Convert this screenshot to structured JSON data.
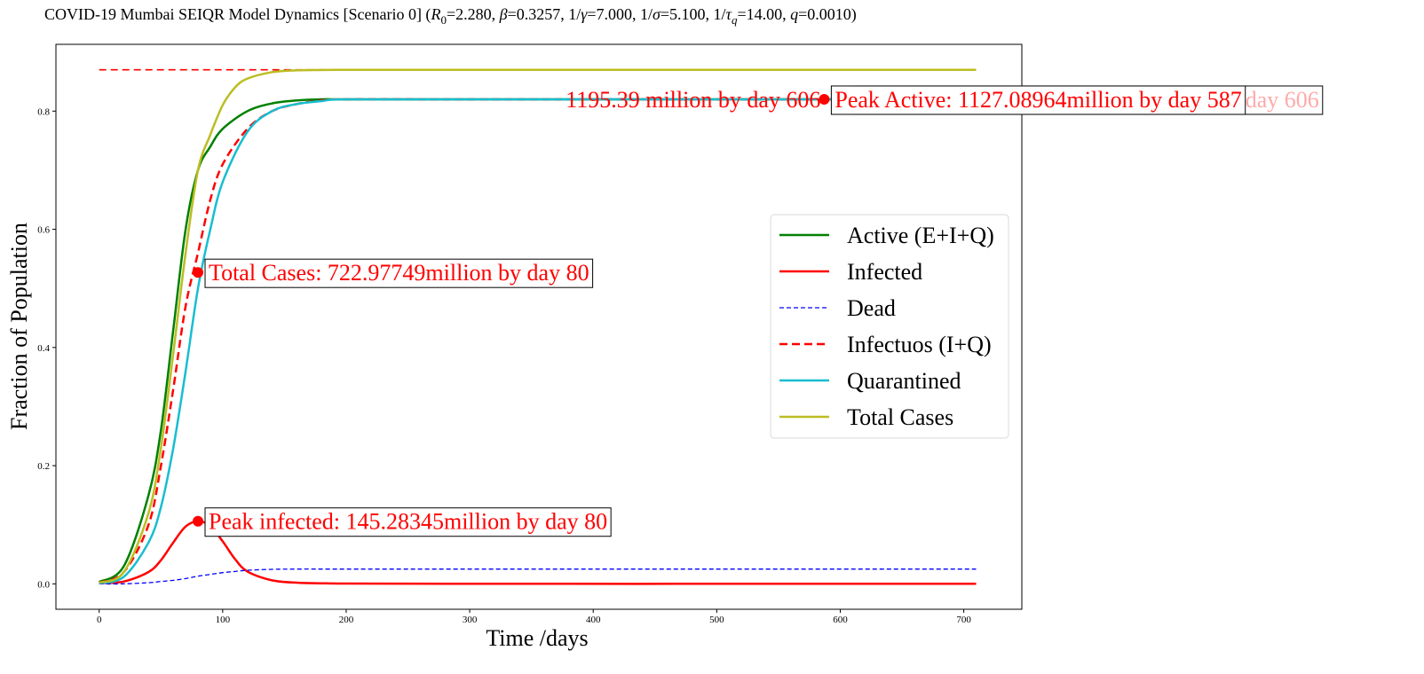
{
  "chart_data": {
    "type": "line",
    "title": {
      "prefix": "COVID-19 Mumbai SEIQR Model Dynamics [Scenario 0] (",
      "r0_symbol": "R",
      "r0_sub": "0",
      "r0_value": "=2.280, ",
      "beta_symbol": "β",
      "beta_value": "=0.3257, 1/",
      "gamma_symbol": "γ",
      "gamma_value": "=7.000, 1/",
      "sigma_symbol": "σ",
      "sigma_value": "=5.100, 1/",
      "tau_symbol": "τ",
      "tau_sub": "q",
      "tau_value": "=14.00, ",
      "q_symbol": "q",
      "q_value": "=0.0010)"
    },
    "xlabel": "Time /days",
    "ylabel": "Fraction of Population",
    "xlim": [
      -35,
      747
    ],
    "ylim": [
      -0.043,
      0.913
    ],
    "xticks": [
      0,
      100,
      200,
      300,
      400,
      500,
      600,
      700
    ],
    "yticks": [
      0.0,
      0.2,
      0.4,
      0.6,
      0.8
    ],
    "ytick_labels": [
      "0.0",
      "0.2",
      "0.4",
      "0.6",
      "0.8"
    ],
    "grid": false,
    "legend_position": "center-right",
    "reference_line": {
      "y": 0.87,
      "color": "#ff0000",
      "style": "dashed"
    },
    "series": [
      {
        "name": "Active (E+I+Q)",
        "color": "#008000",
        "style": "solid",
        "width": 2.5,
        "x": [
          0,
          20,
          40,
          50,
          60,
          70,
          80,
          90,
          100,
          120,
          140,
          160,
          180,
          200,
          300,
          400,
          500,
          600,
          710
        ],
        "y": [
          0.003,
          0.03,
          0.15,
          0.26,
          0.43,
          0.6,
          0.7,
          0.74,
          0.77,
          0.8,
          0.813,
          0.818,
          0.82,
          0.82,
          0.82,
          0.82,
          0.82,
          0.82,
          0.82
        ]
      },
      {
        "name": "Infected",
        "color": "#ff0000",
        "style": "solid",
        "width": 2.5,
        "x": [
          0,
          20,
          40,
          50,
          60,
          70,
          80,
          90,
          100,
          110,
          120,
          140,
          160,
          180,
          200,
          300,
          500,
          710
        ],
        "y": [
          0.001,
          0.004,
          0.02,
          0.04,
          0.07,
          0.097,
          0.106,
          0.098,
          0.072,
          0.042,
          0.021,
          0.006,
          0.002,
          0.001,
          0.0005,
          0.0,
          0.0,
          0.0
        ]
      },
      {
        "name": "Dead",
        "color": "#0000ff",
        "style": "dashed-thin",
        "width": 1.3,
        "x": [
          0,
          20,
          40,
          50,
          60,
          70,
          80,
          90,
          100,
          110,
          120,
          140,
          160,
          200,
          300,
          500,
          710
        ],
        "y": [
          0.0,
          0.0,
          0.002,
          0.004,
          0.006,
          0.009,
          0.013,
          0.016,
          0.019,
          0.021,
          0.023,
          0.0245,
          0.025,
          0.025,
          0.025,
          0.025,
          0.025
        ]
      },
      {
        "name": "Infectuos (I+Q)",
        "color": "#ff0000",
        "style": "dashed",
        "width": 2.5,
        "x": [
          0,
          20,
          40,
          50,
          60,
          70,
          80,
          90,
          100,
          120,
          140,
          160,
          180,
          200,
          300,
          500,
          710
        ],
        "y": [
          0.002,
          0.02,
          0.1,
          0.2,
          0.33,
          0.47,
          0.56,
          0.65,
          0.71,
          0.77,
          0.8,
          0.812,
          0.818,
          0.82,
          0.82,
          0.82,
          0.82
        ]
      },
      {
        "name": "Quarantined",
        "color": "#17becf",
        "style": "solid",
        "width": 2.5,
        "x": [
          0,
          20,
          40,
          50,
          60,
          70,
          80,
          90,
          100,
          120,
          140,
          160,
          180,
          200,
          300,
          500,
          710
        ],
        "y": [
          0.001,
          0.012,
          0.07,
          0.13,
          0.23,
          0.36,
          0.5,
          0.6,
          0.68,
          0.765,
          0.8,
          0.812,
          0.817,
          0.82,
          0.82,
          0.82,
          0.82
        ]
      },
      {
        "name": "Total Cases",
        "color": "#bcbd22",
        "style": "solid",
        "width": 2.5,
        "x": [
          0,
          20,
          40,
          50,
          60,
          70,
          80,
          90,
          100,
          110,
          120,
          140,
          160,
          200,
          300,
          500,
          710
        ],
        "y": [
          0.002,
          0.02,
          0.12,
          0.23,
          0.39,
          0.56,
          0.7,
          0.76,
          0.81,
          0.84,
          0.855,
          0.866,
          0.869,
          0.87,
          0.87,
          0.87,
          0.87
        ]
      }
    ],
    "markers": [
      {
        "x": 80,
        "y": 0.527,
        "color": "#ff0000"
      },
      {
        "x": 80,
        "y": 0.106,
        "color": "#ff0000"
      },
      {
        "x": 587,
        "y": 0.82,
        "color": "#ff0000"
      },
      {
        "x": 606,
        "y": 0.82,
        "color": "#ff9999"
      }
    ],
    "annotations": [
      {
        "text": "Total Cases: 722.97749million by day 80",
        "x": 80,
        "y": 0.527,
        "color": "#ff0000",
        "boxed": true,
        "anchor": "start"
      },
      {
        "text": "Peak infected: 145.28345million by day 80",
        "x": 80,
        "y": 0.106,
        "color": "#ff0000",
        "boxed": true,
        "anchor": "start"
      },
      {
        "text": "Peak Quarantined: 1127.08964million by day 606",
        "x": 606,
        "y": 0.82,
        "color": "#ffaaaa",
        "boxed": true,
        "anchor": "start"
      },
      {
        "text": "1195.39 million by day 606",
        "x": 587,
        "y": 0.82,
        "color": "#ff0000",
        "boxed": false,
        "anchor": "end"
      },
      {
        "text": "Peak Active: 1127.08964million by day 587",
        "x": 587,
        "y": 0.82,
        "color": "#ff0000",
        "boxed": true,
        "anchor": "start"
      }
    ]
  }
}
